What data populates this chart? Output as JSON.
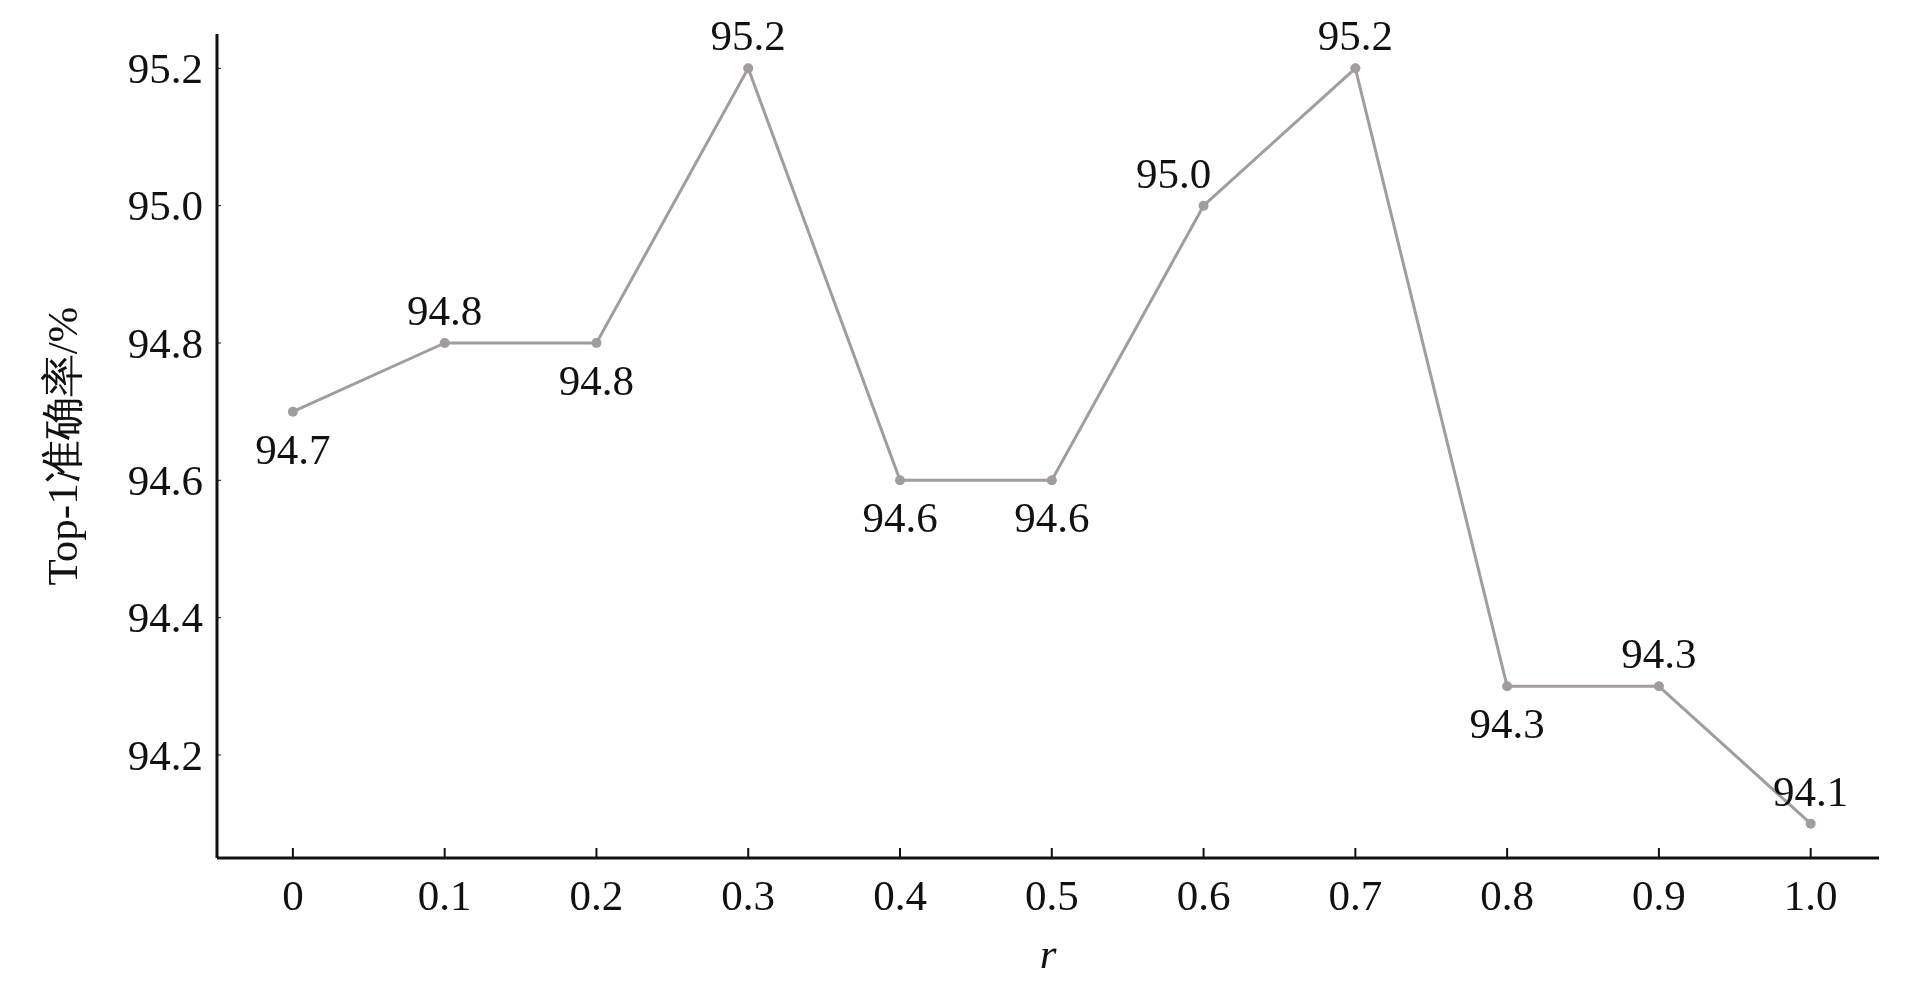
{
  "chart_data": {
    "type": "line",
    "xlabel": "r",
    "ylabel": "Top-1准确率/%",
    "x": [
      0,
      0.1,
      0.2,
      0.3,
      0.4,
      0.5,
      0.6,
      0.7,
      0.8,
      0.9,
      1.0
    ],
    "series": [
      {
        "color": "#a39c9e",
        "values": [
          94.7,
          94.8,
          94.8,
          95.2,
          94.6,
          94.6,
          95.0,
          95.2,
          94.3,
          94.3,
          94.1
        ],
        "value_labels": [
          "94.7",
          "94.8",
          "94.8",
          "95.2",
          "94.6",
          "94.6",
          "95.0",
          "95.2",
          "94.3",
          "94.3",
          "94.1"
        ]
      }
    ],
    "xlim": [
      -0.05,
      1.045
    ],
    "ylim": [
      94.05,
      95.25
    ],
    "xticks": [
      0,
      0.1,
      0.2,
      0.3,
      0.4,
      0.5,
      0.6,
      0.7,
      0.8,
      0.9,
      {
        "value": 1,
        "label": "1.0"
      }
    ],
    "yticks": [
      94.2,
      94.4,
      94.6,
      94.8,
      {
        "value": 95,
        "label": "95.0"
      },
      95.2
    ],
    "marker": "circle",
    "line_style": "solid",
    "grid": false
  }
}
